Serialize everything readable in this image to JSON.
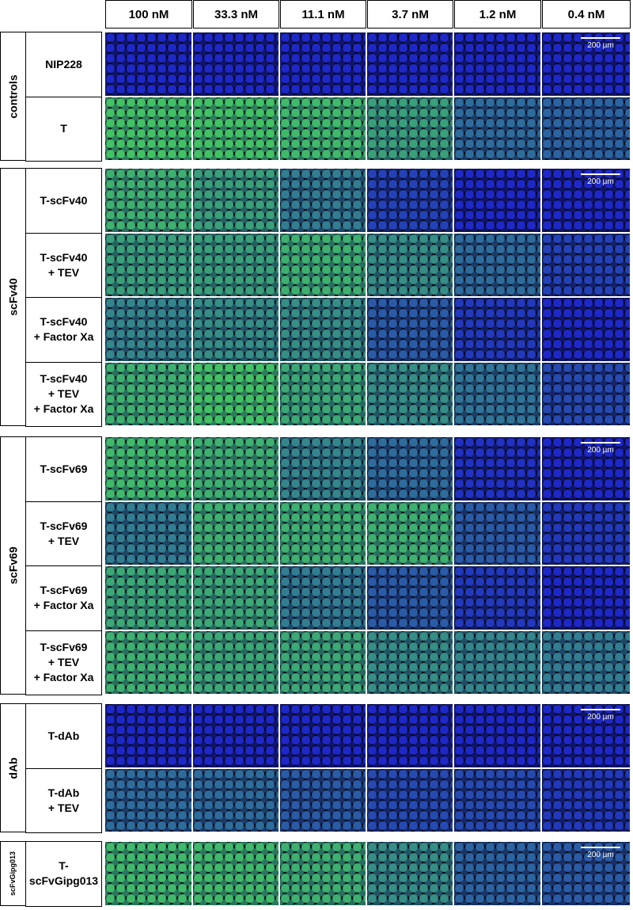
{
  "columns": [
    "100 nM",
    "33.3 nM",
    "11.1 nM",
    "3.7 nM",
    "1.2 nM",
    "0.4 nM"
  ],
  "scale_bar": "200 µm",
  "groups": [
    {
      "label": "controls",
      "rows": [
        {
          "lines": [
            "NIP228"
          ]
        },
        {
          "lines": [
            "T"
          ]
        }
      ]
    },
    {
      "label": "scFv40",
      "rows": [
        {
          "lines": [
            "T-scFv40"
          ]
        },
        {
          "lines": [
            "T-scFv40",
            "+ TEV"
          ]
        },
        {
          "lines": [
            "T-scFv40",
            "+ Factor Xa"
          ]
        },
        {
          "lines": [
            "T-scFv40",
            "+ TEV",
            "+ Factor Xa"
          ]
        }
      ]
    },
    {
      "label": "scFv69",
      "rows": [
        {
          "lines": [
            "T-scFv69"
          ]
        },
        {
          "lines": [
            "T-scFv69",
            "+ TEV"
          ]
        },
        {
          "lines": [
            "T-scFv69",
            "+ Factor Xa"
          ]
        },
        {
          "lines": [
            "T-scFv69",
            "+ TEV",
            "+ Factor Xa"
          ]
        }
      ]
    },
    {
      "label": "dAb",
      "rows": [
        {
          "lines": [
            "T-dAb"
          ]
        },
        {
          "lines": [
            "T-dAb",
            "+ TEV"
          ]
        }
      ]
    },
    {
      "label": "scFvGipg013",
      "rows": [
        {
          "lines": [
            "T-",
            "scFvGipg013"
          ]
        }
      ]
    }
  ]
}
